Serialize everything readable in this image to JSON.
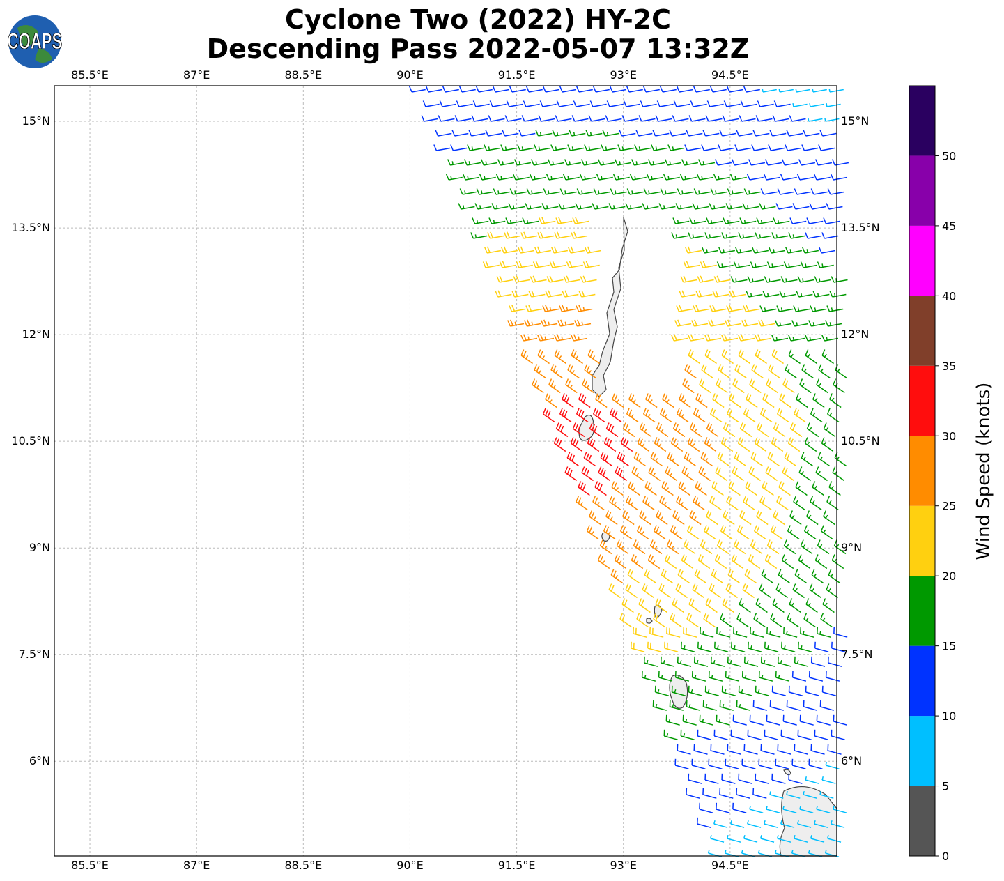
{
  "title_line1": "Cyclone Two (2022) HY-2C",
  "title_line2": "Descending Pass 2022-05-07 13:32Z",
  "logo_text": "COAPS",
  "chart_data": {
    "type": "wind-barb map",
    "lon_range": [
      85.0,
      96.0
    ],
    "lat_range": [
      4.67,
      15.5
    ],
    "lon_ticks": [
      "85.5°E",
      "87°E",
      "88.5°E",
      "90°E",
      "91.5°E",
      "93°E",
      "94.5°E"
    ],
    "lon_values": [
      85.5,
      87,
      88.5,
      90,
      91.5,
      93,
      94.5
    ],
    "lat_ticks": [
      "15°N",
      "13.5°N",
      "12°N",
      "10.5°N",
      "9°N",
      "7.5°N",
      "6°N"
    ],
    "lat_values": [
      15,
      13.5,
      12,
      10.5,
      9,
      7.5,
      6
    ],
    "grid": true,
    "colorbar": {
      "label": "Wind Speed (knots)",
      "ticks": [
        "0",
        "5",
        "10",
        "15",
        "20",
        "25",
        "30",
        "35",
        "40",
        "45",
        "50"
      ],
      "range": [
        0,
        55
      ],
      "colors": [
        "#555555",
        "#00bfff",
        "#0033ff",
        "#009900",
        "#ffd010",
        "#ff8c00",
        "#ff0d0d",
        "#803f2a",
        "#ff00ff",
        "#8800aa",
        "#2a0060"
      ]
    }
  }
}
